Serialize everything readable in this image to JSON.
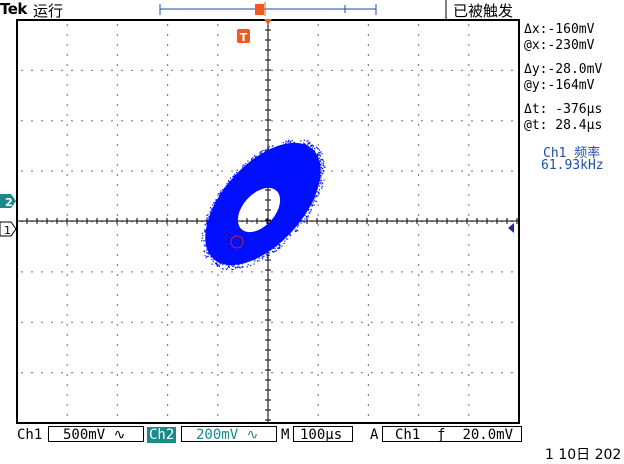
{
  "header": {
    "brand": "Tek",
    "run_state": "运行",
    "trigger_status": "已被触发"
  },
  "cursor_readouts": [
    {
      "label": "Δx:",
      "value": "-160mV"
    },
    {
      "label": "@x:",
      "value": "-230mV"
    },
    {
      "label": "Δy:",
      "value": "-28.0mV"
    },
    {
      "label": "@y:",
      "value": "-164mV"
    },
    {
      "label": "Δt:",
      "value": " -376µs"
    },
    {
      "label": "@t:",
      "value": " 28.4µs"
    }
  ],
  "measurement": {
    "label": "Ch1 频率",
    "value": "61.93kHz"
  },
  "markers": {
    "trigger": "T",
    "ch2": "2",
    "ch1": "1"
  },
  "bottom": {
    "ch1_label": "Ch1",
    "ch1_scale": "500mV",
    "ch2_label": "Ch2",
    "ch2_scale": "200mV",
    "timebase_label": "M",
    "timebase": "100µs",
    "trigger_mode": "A",
    "trigger_source": "Ch1",
    "trigger_level": "20.0mV",
    "coupling_symbol": "∿",
    "slope_symbol": "ƒ"
  },
  "date_text": "1 10日 202",
  "colors": {
    "trace": "#0010ff",
    "ch2": "#1a8a8a",
    "trigger": "#f05a1e"
  }
}
